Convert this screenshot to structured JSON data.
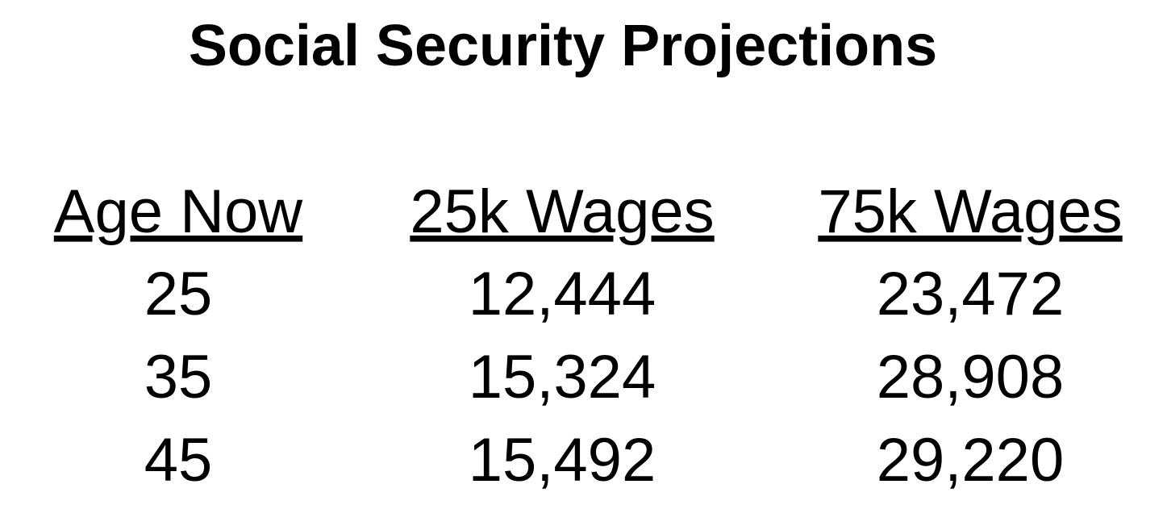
{
  "title": "Social Security Projections",
  "table": {
    "headers": [
      "Age Now",
      "25k Wages",
      "75k Wages"
    ],
    "rows": [
      [
        "25",
        "12,444",
        "23,472"
      ],
      [
        "35",
        "15,324",
        "28,908"
      ],
      [
        "45",
        "15,492",
        "29,220"
      ]
    ]
  }
}
